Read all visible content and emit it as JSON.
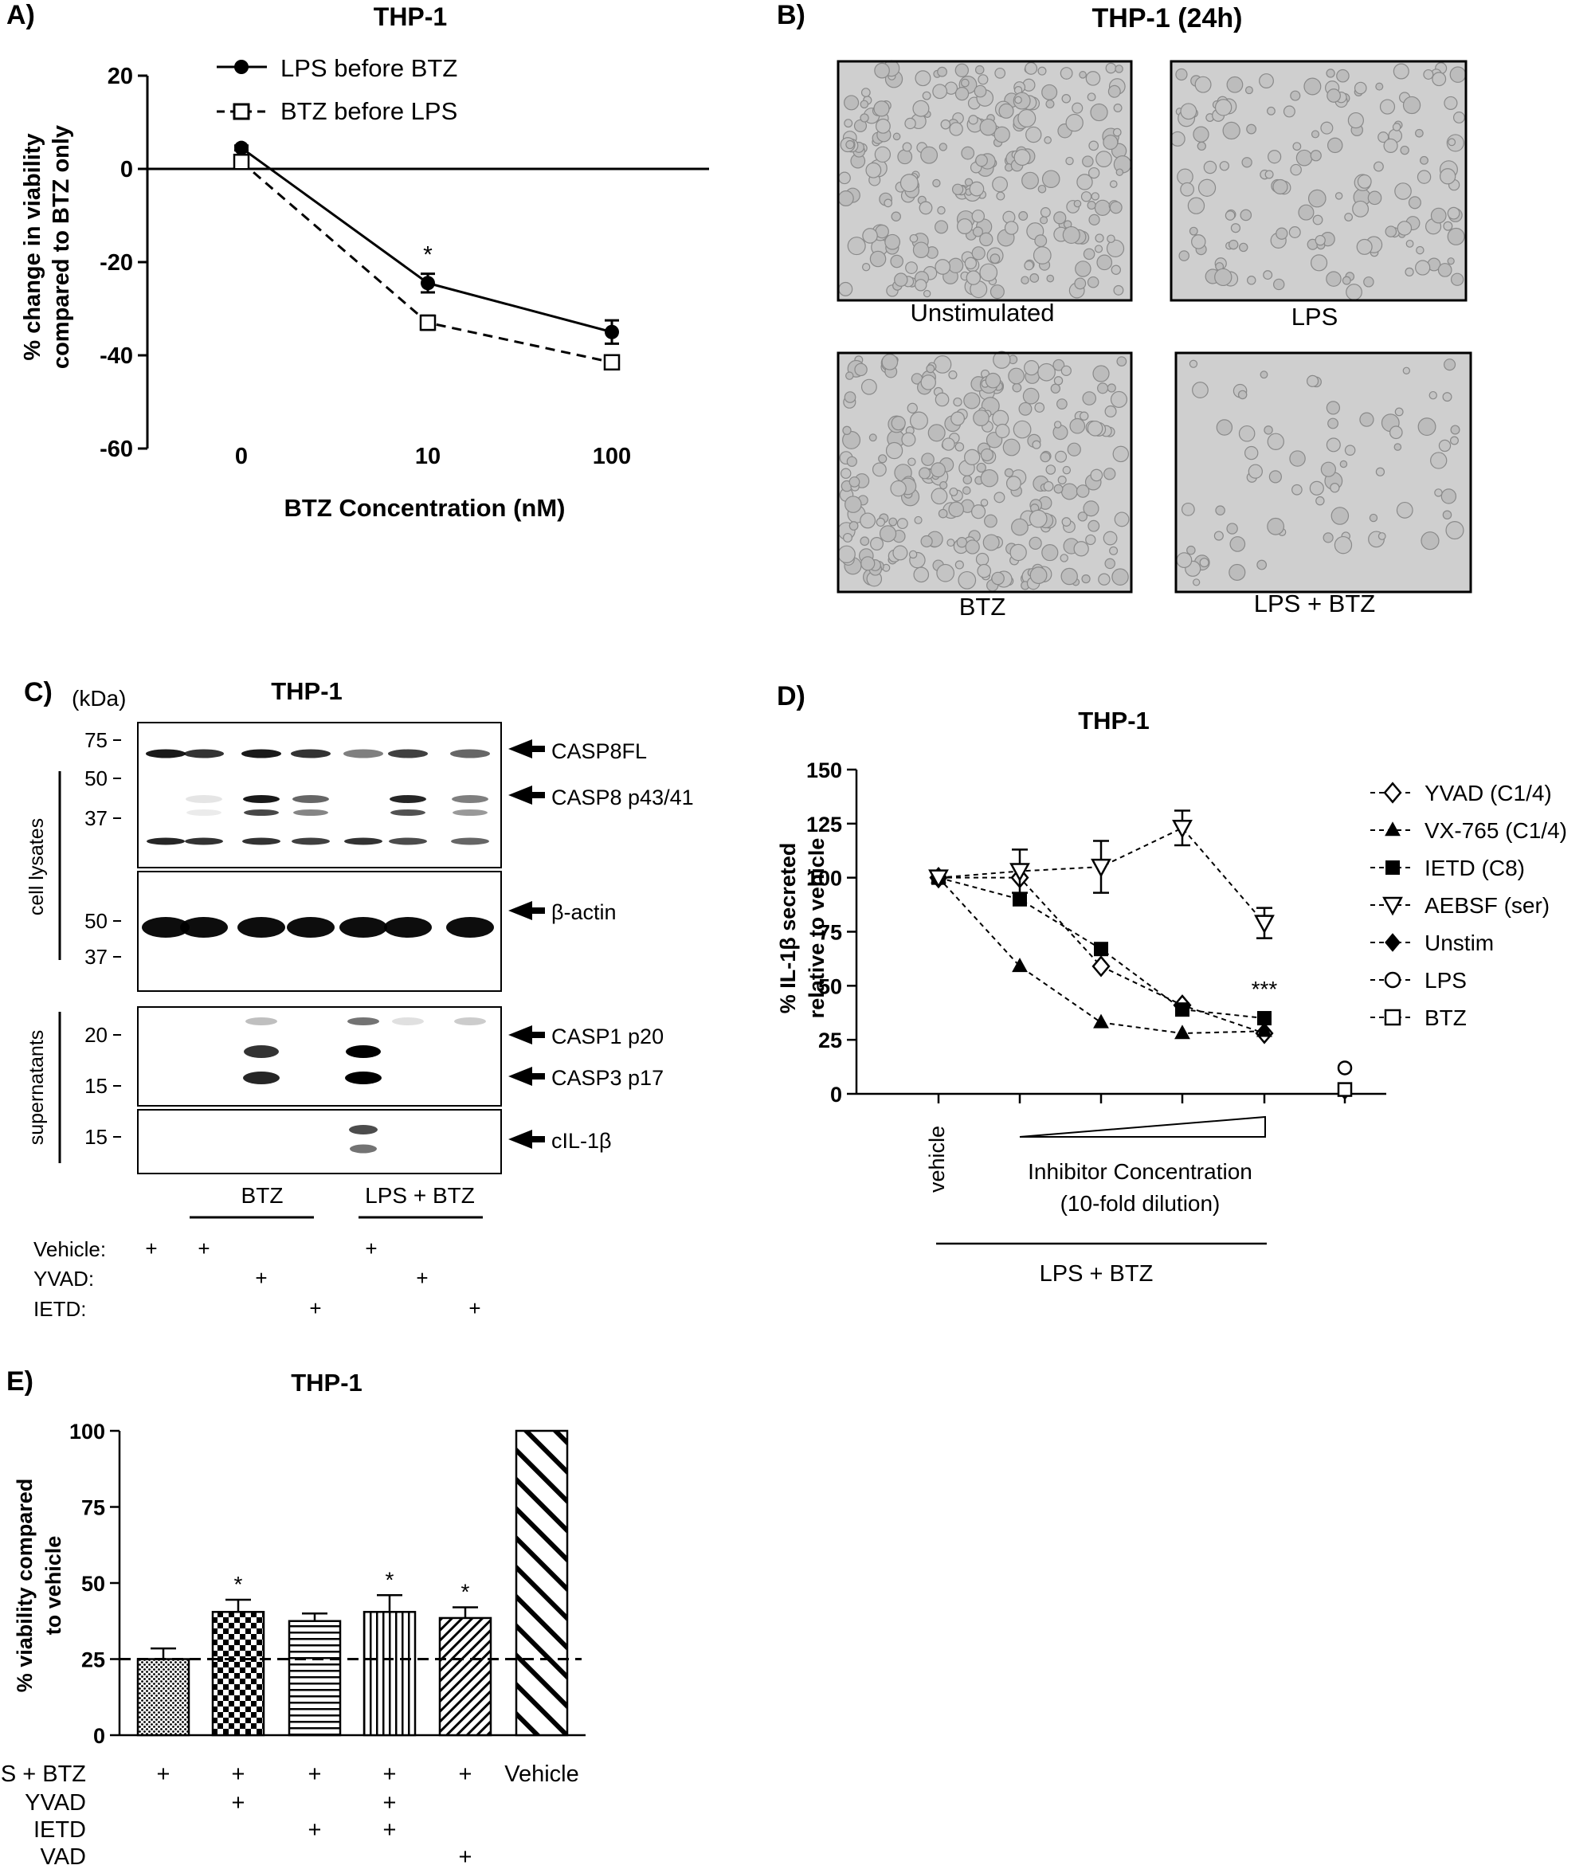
{
  "panels": {
    "A": {
      "letter": "A)",
      "chart_data": {
        "type": "line",
        "title": "THP-1",
        "xlabel": "BTZ Concentration (nM)",
        "ylabel_line1": "% change in viability",
        "ylabel_line2": "compared to BTZ only",
        "categories": [
          "0",
          "10",
          "100"
        ],
        "yticks": [
          "20",
          "0",
          "-20",
          "-40",
          "-60"
        ],
        "ylim": [
          -60,
          20
        ],
        "series": [
          {
            "name": "LPS before BTZ",
            "values": [
              4.5,
              -24.5,
              -35
            ],
            "errors": [
              0.5,
              2,
              2.5
            ],
            "marker": "filled-circle",
            "line": "solid"
          },
          {
            "name": "BTZ before LPS",
            "values": [
              1.5,
              -33,
              -41.5
            ],
            "errors": [
              0.5,
              1.5,
              1
            ],
            "marker": "open-square",
            "line": "dashed"
          }
        ],
        "annotations": [
          {
            "category": "10",
            "text": "*"
          }
        ]
      }
    },
    "B": {
      "letter": "B)",
      "title": "THP-1 (24h)",
      "images": [
        {
          "label": "Unstimulated",
          "density": 260
        },
        {
          "label": "LPS",
          "density": 150
        },
        {
          "label": "BTZ",
          "density": 260
        },
        {
          "label": "LPS + BTZ",
          "density": 70
        }
      ]
    },
    "C": {
      "letter": "C)",
      "title": "THP-1",
      "kda_label": "(kDa)",
      "side_labels": [
        "cell lysates",
        "supernatants"
      ],
      "blots": [
        {
          "ticks": [
            "75",
            "50",
            "37"
          ],
          "arrows": [
            "CASP8FL",
            "CASP8 p43/41"
          ]
        },
        {
          "ticks": [
            "50",
            "37"
          ],
          "arrows": [
            "β-actin"
          ]
        },
        {
          "ticks": [
            "20",
            "15"
          ],
          "arrows": [
            "CASP1 p20",
            "CASP3 p17"
          ]
        },
        {
          "ticks": [
            "15"
          ],
          "arrows": [
            "cIL-1β"
          ]
        }
      ],
      "group_labels": [
        "BTZ",
        "LPS + BTZ"
      ],
      "treatment_rows": [
        {
          "label": "Vehicle:",
          "marks": [
            "+",
            "+",
            "",
            "",
            "+",
            "",
            ""
          ]
        },
        {
          "label": "YVAD:",
          "marks": [
            "",
            "",
            "+",
            "",
            "",
            "+",
            ""
          ]
        },
        {
          "label": "IETD:",
          "marks": [
            "",
            "",
            "",
            "+",
            "",
            "",
            "+"
          ]
        }
      ]
    },
    "D": {
      "letter": "D)",
      "chart_data": {
        "type": "line",
        "title": "THP-1",
        "ylabel_line1": "% IL-1β secreted",
        "ylabel_line2": "relative to vehicle",
        "ylim": [
          0,
          150
        ],
        "yticks": [
          "150",
          "125",
          "100",
          "75",
          "50",
          "25",
          "0"
        ],
        "x_first_label": "vehicle",
        "x_wedge_label_line1": "Inhibitor Concentration",
        "x_wedge_label_line2": "(10-fold dilution)",
        "x_group_label": "LPS + BTZ",
        "x_positions": [
          0,
          1,
          2,
          3,
          4
        ],
        "series": [
          {
            "name": "YVAD (C1/4)",
            "values": [
              100,
              100,
              59,
              41,
              28
            ],
            "marker": "open-diamond"
          },
          {
            "name": "VX-765 (C1/4)",
            "values": [
              100,
              59,
              33,
              28,
              29
            ],
            "marker": "filled-triangle-up"
          },
          {
            "name": "IETD (C8)",
            "values": [
              100,
              90,
              67,
              39,
              35
            ],
            "marker": "filled-square"
          },
          {
            "name": "AEBSF (ser)",
            "values": [
              100,
              103,
              105,
              123,
              79
            ],
            "errors": [
              0,
              10,
              12,
              8,
              7
            ],
            "marker": "open-triangle-down"
          },
          {
            "name": "Unstim",
            "values": [
              1
            ],
            "x_override": "control",
            "marker": "filled-diamond"
          },
          {
            "name": "LPS",
            "values": [
              12
            ],
            "x_override": "control",
            "marker": "open-circle"
          },
          {
            "name": "BTZ",
            "values": [
              2
            ],
            "x_override": "control",
            "marker": "open-square"
          }
        ],
        "annotations": [
          {
            "x": 4,
            "text": "***"
          }
        ]
      }
    },
    "E": {
      "letter": "E)",
      "chart_data": {
        "type": "bar",
        "title": "THP-1",
        "ylabel_line1": "% viability compared",
        "ylabel_line2": "to vehicle",
        "ylim": [
          0,
          100
        ],
        "yticks": [
          "100",
          "75",
          "50",
          "25",
          "0"
        ],
        "reference_line": 25,
        "values": [
          25,
          40.5,
          37.5,
          40.5,
          38.5,
          100
        ],
        "errors": [
          3.5,
          4,
          2.5,
          5.5,
          3.5,
          0
        ],
        "significance": [
          "",
          "*",
          "",
          "*",
          "*",
          ""
        ],
        "patterns": [
          "dots",
          "checker",
          "hlines",
          "vlines",
          "diag",
          "diag-wide"
        ],
        "rows": [
          {
            "label": "LPS + BTZ",
            "marks": [
              "+",
              "+",
              "+",
              "+",
              "+",
              "Vehicle"
            ]
          },
          {
            "label": "YVAD",
            "marks": [
              "",
              "+",
              "",
              "+",
              "",
              ""
            ]
          },
          {
            "label": "IETD",
            "marks": [
              "",
              "",
              "+",
              "+",
              "",
              ""
            ]
          },
          {
            "label": "VAD",
            "marks": [
              "",
              "",
              "",
              "",
              "+",
              ""
            ]
          }
        ]
      }
    }
  }
}
